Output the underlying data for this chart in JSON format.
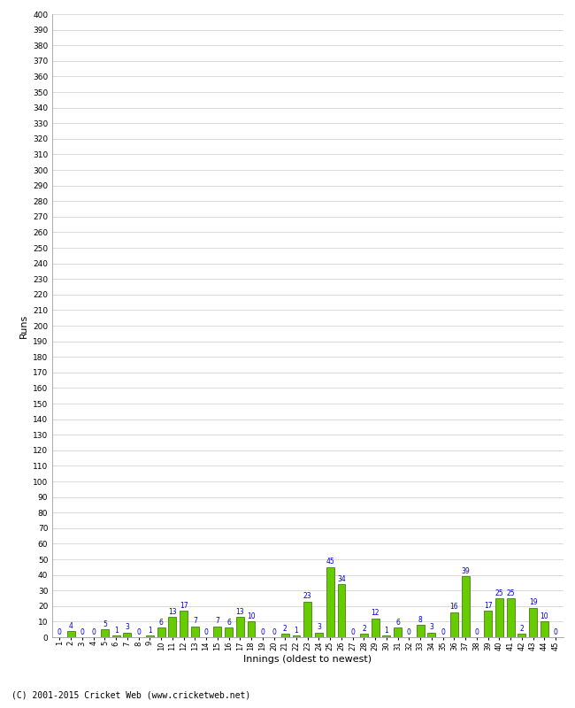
{
  "xlabel": "Innings (oldest to newest)",
  "ylabel": "Runs",
  "innings": [
    1,
    2,
    3,
    4,
    5,
    6,
    7,
    8,
    9,
    10,
    11,
    12,
    13,
    14,
    15,
    16,
    17,
    18,
    19,
    20,
    21,
    22,
    23,
    24,
    25,
    26,
    27,
    28,
    29,
    30,
    31,
    32,
    33,
    34,
    35,
    36,
    37,
    38,
    39,
    40,
    41,
    42,
    43,
    44,
    45
  ],
  "values": [
    0,
    4,
    0,
    0,
    5,
    1,
    3,
    0,
    1,
    6,
    13,
    17,
    7,
    0,
    7,
    6,
    13,
    10,
    0,
    0,
    2,
    1,
    23,
    3,
    45,
    34,
    0,
    2,
    12,
    1,
    6,
    0,
    8,
    3,
    0,
    16,
    39,
    0,
    17,
    25,
    25,
    2,
    19,
    10,
    0
  ],
  "labels": [
    0,
    4,
    0,
    0,
    5,
    1,
    3,
    0,
    1,
    6,
    13,
    17,
    7,
    0,
    7,
    6,
    13,
    10,
    0,
    0,
    2,
    1,
    23,
    3,
    45,
    34,
    0,
    2,
    12,
    1,
    6,
    0,
    8,
    3,
    0,
    16,
    39,
    0,
    17,
    25,
    25,
    2,
    19,
    10,
    0
  ],
  "bar_color": "#66cc00",
  "bar_edge_color": "#336600",
  "label_color": "#0000cc",
  "background_color": "#ffffff",
  "grid_color": "#cccccc",
  "ylim": [
    0,
    400
  ],
  "footer": "(C) 2001-2015 Cricket Web (www.cricketweb.net)"
}
